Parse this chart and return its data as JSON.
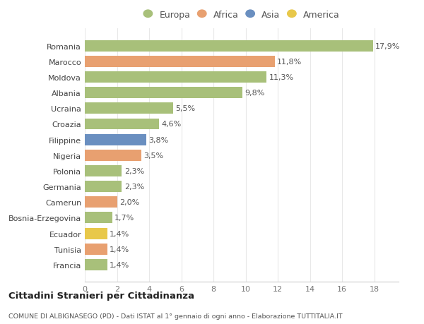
{
  "countries": [
    "Francia",
    "Tunisia",
    "Ecuador",
    "Bosnia-Erzegovina",
    "Camerun",
    "Germania",
    "Polonia",
    "Nigeria",
    "Filippine",
    "Croazia",
    "Ucraina",
    "Albania",
    "Moldova",
    "Marocco",
    "Romania"
  ],
  "values": [
    1.4,
    1.4,
    1.4,
    1.7,
    2.0,
    2.3,
    2.3,
    3.5,
    3.8,
    4.6,
    5.5,
    9.8,
    11.3,
    11.8,
    17.9
  ],
  "labels": [
    "1,4%",
    "1,4%",
    "1,4%",
    "1,7%",
    "2,0%",
    "2,3%",
    "2,3%",
    "3,5%",
    "3,8%",
    "4,6%",
    "5,5%",
    "9,8%",
    "11,3%",
    "11,8%",
    "17,9%"
  ],
  "colors": [
    "#a8c07a",
    "#e8a070",
    "#e8c84a",
    "#a8c07a",
    "#e8a070",
    "#a8c07a",
    "#a8c07a",
    "#e8a070",
    "#6a8fc0",
    "#a8c07a",
    "#a8c07a",
    "#a8c07a",
    "#a8c07a",
    "#e8a070",
    "#a8c07a"
  ],
  "legend": {
    "Europa": "#a8c07a",
    "Africa": "#e8a070",
    "Asia": "#6a8fc0",
    "America": "#e8c84a"
  },
  "title": "Cittadini Stranieri per Cittadinanza",
  "subtitle": "COMUNE DI ALBIGNASEGO (PD) - Dati ISTAT al 1° gennaio di ogni anno - Elaborazione TUTTITALIA.IT",
  "xlim": [
    0,
    19.5
  ],
  "xticks": [
    0,
    2,
    4,
    6,
    8,
    10,
    12,
    14,
    16,
    18
  ],
  "bg_color": "#ffffff",
  "plot_bg_color": "#ffffff",
  "grid_color": "#e8e8e8",
  "bar_height": 0.72,
  "label_fontsize": 8.0,
  "tick_fontsize": 8.0,
  "ytick_fontsize": 8.0
}
